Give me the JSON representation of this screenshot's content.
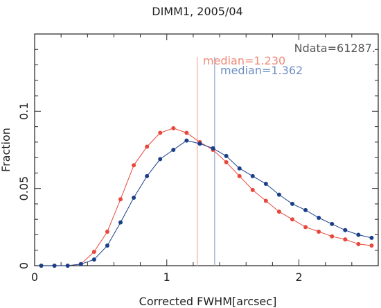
{
  "chart_data": {
    "type": "line",
    "title": "DIMM1, 2005/04",
    "xlabel": "Corrected FWHM[arcsec]",
    "ylabel": "Fraction",
    "xlim": [
      0,
      2.6
    ],
    "ylim": [
      0,
      0.15
    ],
    "xticks": [
      0,
      1,
      2
    ],
    "xtick_labels": [
      "0",
      "1",
      "2"
    ],
    "yticks": [
      0,
      0.05,
      0.1
    ],
    "ytick_labels": [
      "0",
      "0.05",
      "0.1"
    ],
    "ndata_label": "Ndata=61287.",
    "series": [
      {
        "color": "#e8483b",
        "median_label": "median=1.230",
        "median": 1.23,
        "x": [
          0.05,
          0.15,
          0.25,
          0.35,
          0.45,
          0.55,
          0.65,
          0.75,
          0.85,
          0.95,
          1.05,
          1.15,
          1.25,
          1.35,
          1.45,
          1.55,
          1.65,
          1.75,
          1.85,
          1.95,
          2.05,
          2.15,
          2.25,
          2.35,
          2.45,
          2.55
        ],
        "y": [
          0.0,
          0.0,
          0.0,
          0.001,
          0.009,
          0.022,
          0.043,
          0.065,
          0.077,
          0.086,
          0.089,
          0.086,
          0.08,
          0.075,
          0.067,
          0.058,
          0.049,
          0.042,
          0.035,
          0.03,
          0.025,
          0.022,
          0.019,
          0.017,
          0.014,
          0.013
        ]
      },
      {
        "color": "#1a3f8a",
        "median_label": "median=1.362",
        "median": 1.362,
        "x": [
          0.05,
          0.15,
          0.25,
          0.35,
          0.45,
          0.55,
          0.65,
          0.75,
          0.85,
          0.95,
          1.05,
          1.15,
          1.25,
          1.35,
          1.45,
          1.55,
          1.65,
          1.75,
          1.85,
          1.95,
          2.05,
          2.15,
          2.25,
          2.35,
          2.45,
          2.55
        ],
        "y": [
          0.0,
          0.0,
          0.0,
          0.001,
          0.004,
          0.013,
          0.028,
          0.044,
          0.058,
          0.069,
          0.075,
          0.081,
          0.079,
          0.076,
          0.071,
          0.063,
          0.058,
          0.053,
          0.046,
          0.04,
          0.036,
          0.031,
          0.027,
          0.023,
          0.02,
          0.018
        ]
      }
    ],
    "median_line_colors": [
      "#f2a898",
      "#8fa8d0"
    ],
    "grid": false
  }
}
